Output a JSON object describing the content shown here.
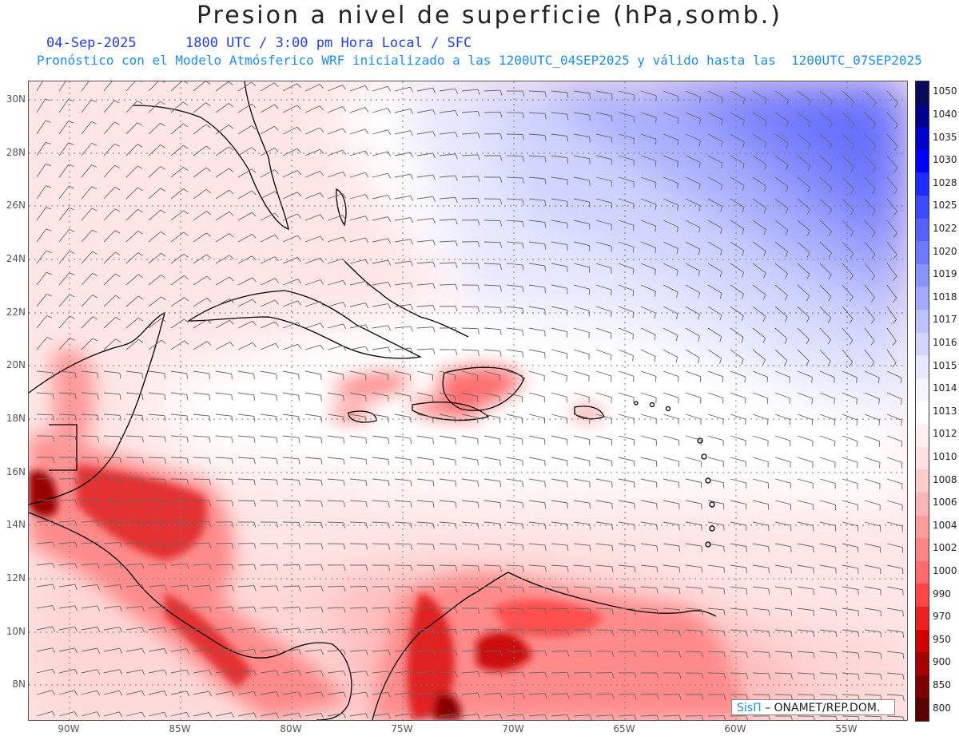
{
  "title": "Presion a nivel de superficie (hPa,somb.)",
  "subtitle_line1": "04-Sep-2025      1800 UTC / 3:00 pm Hora Local / SFC",
  "subtitle_line2": "Pronóstico con el Modelo Atmósferico WRF inicializado a las 1200UTC_04SEP2025 y válido hasta las  1200UTC_07SEP2025",
  "map": {
    "lat_labels": [
      "30N",
      "28N",
      "26N",
      "24N",
      "22N",
      "20N",
      "18N",
      "16N",
      "14N",
      "12N",
      "10N",
      "8N"
    ],
    "lon_labels": [
      "90W",
      "85W",
      "80W",
      "75W",
      "70W",
      "65W",
      "60W",
      "55W"
    ]
  },
  "colorbar": {
    "levels": [
      "1050",
      "1040",
      "1035",
      "1030",
      "1028",
      "1025",
      "1022",
      "1020",
      "1019",
      "1018",
      "1017",
      "1016",
      "1015",
      "1014",
      "1013",
      "1012",
      "1010",
      "1008",
      "1006",
      "1004",
      "1002",
      "1000",
      "990",
      "970",
      "950",
      "900",
      "850",
      "800"
    ],
    "colors": [
      "#0a0a5a",
      "#00008f",
      "#0000cd",
      "#0000ff",
      "#1e2cff",
      "#3b4bff",
      "#5561ff",
      "#6e79ff",
      "#8a93ff",
      "#a3abff",
      "#bcc2ff",
      "#d2d6ff",
      "#e6e8ff",
      "#f4f5ff",
      "#ffffff",
      "#fff0f0",
      "#ffe0e0",
      "#ffcccc",
      "#ffb5b5",
      "#ff9d9d",
      "#ff8585",
      "#ff6b6b",
      "#ff4545",
      "#f01f1f",
      "#d40000",
      "#a80000",
      "#800000",
      "#5a0000"
    ]
  },
  "credit": {
    "brand": "SisΠ",
    "text": "– ONAMET/REP.DOM."
  }
}
